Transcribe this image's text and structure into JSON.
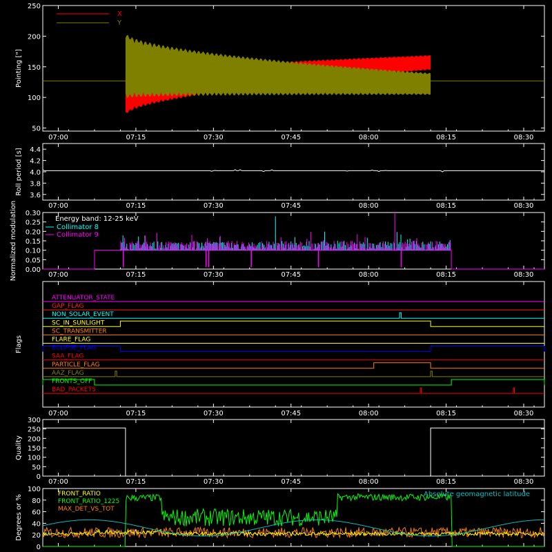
{
  "chart_data": [
    {
      "type": "line",
      "ylabel": "Pointing [\"]",
      "ylim": [
        45,
        250
      ],
      "yticks": [
        50,
        100,
        150,
        200,
        250
      ],
      "xticks": [
        "07:00",
        "07:15",
        "07:30",
        "07:45",
        "08:00",
        "08:15",
        "08:30"
      ],
      "legend_position": "top-left",
      "series": [
        {
          "name": "X",
          "color": "#ff0000",
          "start": "07:13",
          "end": "08:12",
          "center_start": 105,
          "center_end": 157,
          "amp_start": 35,
          "amp_end": 12
        },
        {
          "name": "Y",
          "color": "#808000",
          "start": "07:13",
          "end": "08:12",
          "center_start": 152,
          "center_end": 122,
          "amp_start": 55,
          "amp_end": 18,
          "baseline": 127
        }
      ]
    },
    {
      "type": "line",
      "ylabel": "Roll period [s]",
      "ylim": [
        3.5,
        4.5
      ],
      "yticks": [
        3.6,
        3.8,
        4.0,
        4.2,
        4.4
      ],
      "ytick_labels": [
        "3.6",
        "3.8",
        "4.0",
        "4.2",
        "4.4"
      ],
      "xticks": [
        "07:00",
        "07:15",
        "07:30",
        "07:45",
        "08:00",
        "08:15",
        "08:30"
      ],
      "series": [
        {
          "name": "",
          "color": "#ffffff",
          "value": 4.02
        }
      ]
    },
    {
      "type": "bar",
      "ylabel": "Normalized modulation",
      "ylim": [
        0,
        0.3
      ],
      "yticks": [
        0,
        0.05,
        0.1,
        0.15,
        0.2,
        0.25,
        0.3
      ],
      "ytick_labels": [
        "0.00",
        "0.05",
        "0.10",
        "0.15",
        "0.20",
        "0.25",
        "0.30"
      ],
      "xticks": [
        "07:00",
        "07:15",
        "07:30",
        "07:45",
        "08:00",
        "08:15",
        "08:30"
      ],
      "legend_position": "top-left",
      "legend_title": "Energy band: 12-25 keV",
      "series": [
        {
          "name": "Collimator 8",
          "color": "#00ffff",
          "start": "07:07",
          "end": "08:16",
          "base": 0.1
        },
        {
          "name": "Collimator 9",
          "color": "#ff00ff",
          "start": "07:07",
          "end": "08:16",
          "base": 0.1
        }
      ]
    },
    {
      "type": "line",
      "ylabel": "Flags",
      "xticks": [
        "07:00",
        "07:15",
        "07:30",
        "07:45",
        "08:00",
        "08:15",
        "08:30"
      ],
      "flags": [
        {
          "name": "ATTENUATOR_STATE",
          "color": "#ff00ff",
          "on": []
        },
        {
          "name": "GAP_FLAG",
          "color": "#ff2020",
          "on": []
        },
        {
          "name": "NON_SOLAR_EVENT",
          "color": "#00ffff",
          "on": [
            [
              "08:06",
              "08:06.3"
            ]
          ]
        },
        {
          "name": "SC_IN_SUNLIGHT",
          "color": "#ffff00",
          "on": [
            [
              "07:12",
              "08:12"
            ]
          ]
        },
        {
          "name": "SC_TRANSMITTER",
          "color": "#ff8000",
          "on": []
        },
        {
          "name": "FLARE_FLAG",
          "color": "#ffff00",
          "on": []
        },
        {
          "name": "ECLIPSE_FLAG",
          "color": "#0000ff",
          "on": [
            [
              "06:57",
              "07:12"
            ],
            [
              "08:12",
              "08:34"
            ]
          ]
        },
        {
          "name": "SAA_FLAG",
          "color": "#ff0000",
          "on": []
        },
        {
          "name": "PARTICLE_FLAG",
          "color": "#ff8000",
          "on": [
            [
              "08:01",
              "08:12"
            ]
          ]
        },
        {
          "name": "AAZ_FLAG",
          "color": "#808000",
          "on": [
            [
              "07:11",
              "07:11.3"
            ],
            [
              "08:12",
              "08:12.3"
            ]
          ]
        },
        {
          "name": "FRONTS_OFF",
          "color": "#00ff00",
          "on": [
            [
              "06:57",
              "07:07"
            ],
            [
              "08:16",
              "08:34"
            ]
          ]
        },
        {
          "name": "BAD_PACKETS",
          "color": "#ff0000",
          "on": [
            [
              "08:10",
              "08:10.2"
            ],
            [
              "08:28",
              "08:28.2"
            ]
          ]
        }
      ]
    },
    {
      "type": "line",
      "ylabel": "Quality",
      "ylim": [
        0,
        300
      ],
      "yticks": [
        0,
        50,
        100,
        150,
        200,
        250,
        300
      ],
      "xticks": [
        "07:00",
        "07:15",
        "07:30",
        "07:45",
        "08:00",
        "08:15",
        "08:30"
      ],
      "series": [
        {
          "name": "",
          "color": "#ffffff",
          "segments": [
            [
              "06:57",
              "07:13",
              255
            ],
            [
              "07:13",
              "08:12",
              0
            ],
            [
              "08:12",
              "08:34",
              255
            ]
          ]
        }
      ]
    },
    {
      "type": "line",
      "ylabel": "Degrees or %",
      "ylim": [
        0,
        100
      ],
      "yticks": [
        0,
        20,
        40,
        60,
        80,
        100
      ],
      "xticks": [
        "07:00",
        "07:15",
        "07:30",
        "07:45",
        "08:00",
        "08:15",
        "08:30"
      ],
      "legend_position": "top-left",
      "series": [
        {
          "name": "FRONT_RATIO",
          "color": "#ffff00"
        },
        {
          "name": "FRONT_RATIO_1225",
          "color": "#00ff00"
        },
        {
          "name": "MAX_DET_VS_TOT",
          "color": "#ff8000"
        },
        {
          "name": "Absolute geomagnetic latitude",
          "color": "#00c0c0"
        }
      ]
    }
  ]
}
